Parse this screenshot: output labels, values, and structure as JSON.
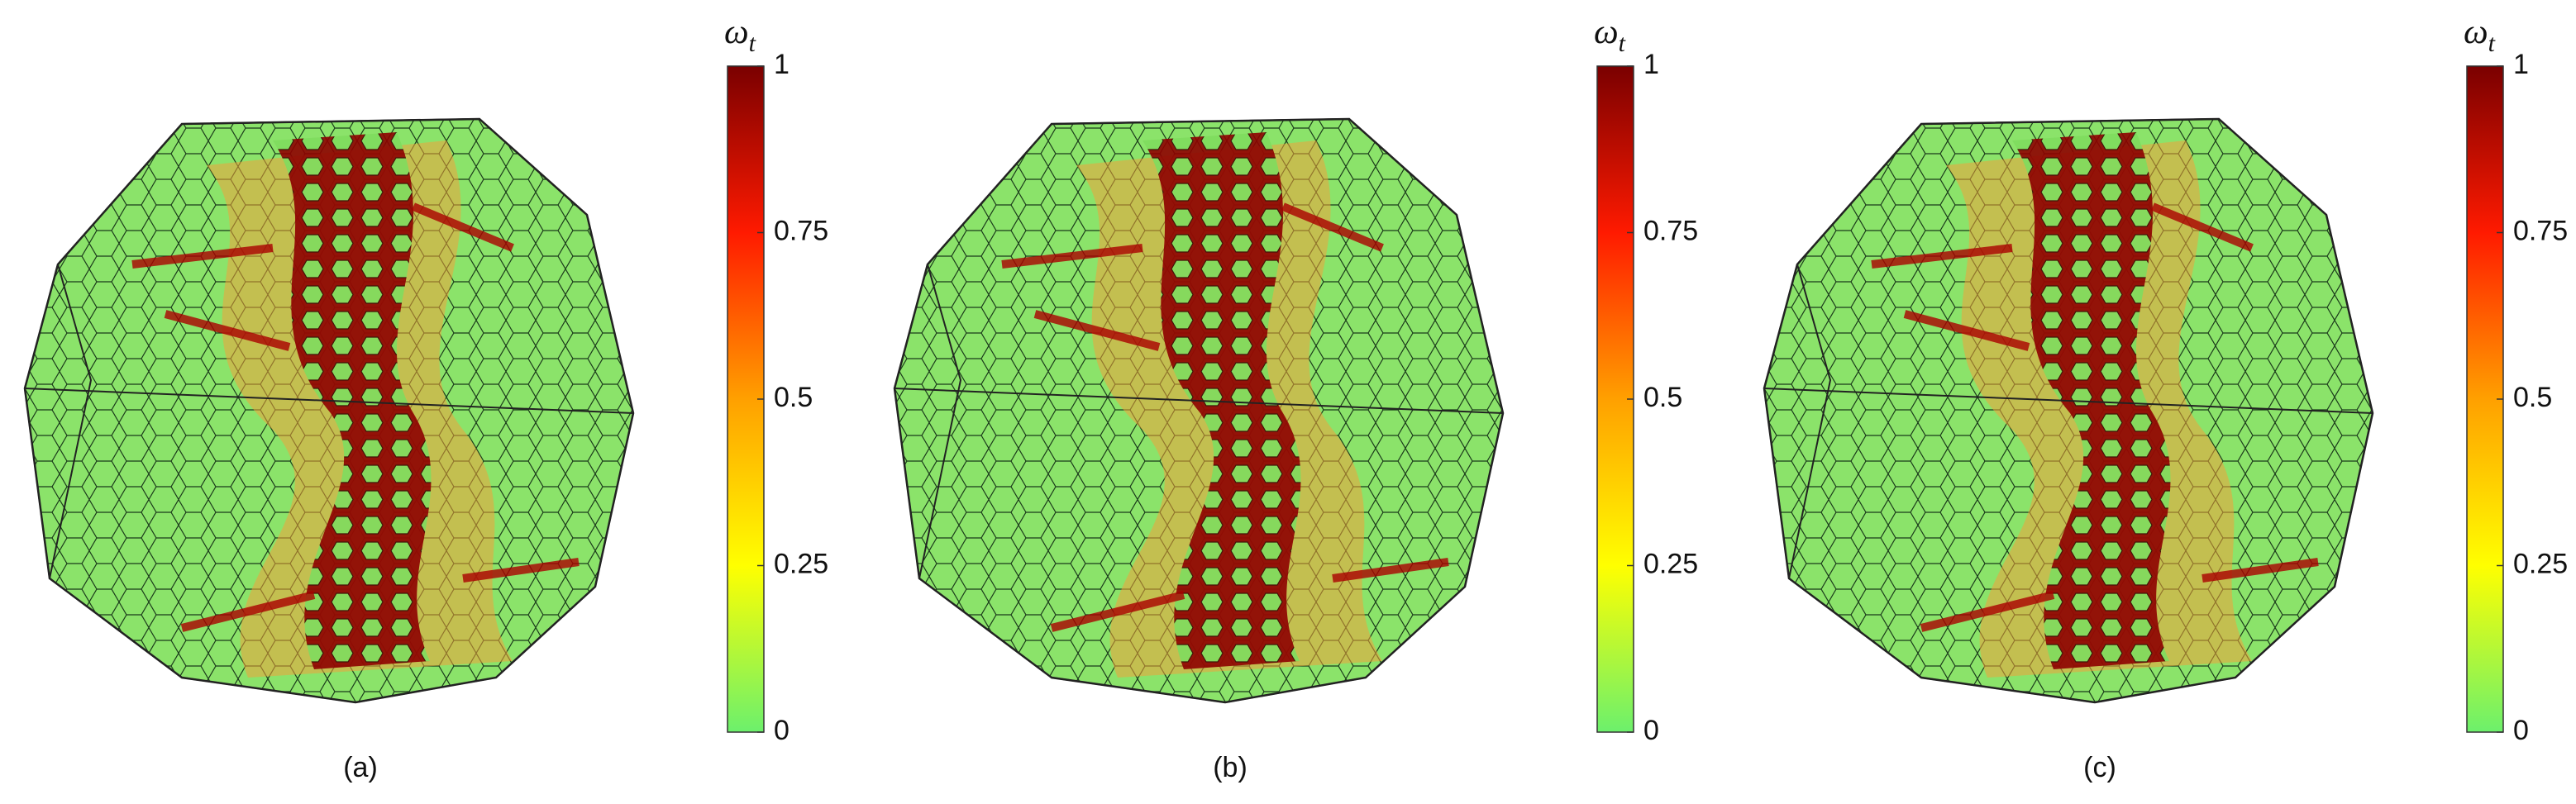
{
  "panels": [
    {
      "label": "(a)",
      "colorbar": {
        "symbol": "ω",
        "subscript": "t",
        "range": [
          0,
          1
        ],
        "ticks": [
          0,
          0.25,
          0.5,
          0.75,
          1
        ]
      }
    },
    {
      "label": "(b)",
      "colorbar": {
        "symbol": "ω",
        "subscript": "t",
        "range": [
          0,
          1
        ],
        "ticks": [
          0,
          0.25,
          0.5,
          0.75,
          1
        ]
      }
    },
    {
      "label": "(c)",
      "colorbar": {
        "symbol": "ω",
        "subscript": "t",
        "range": [
          0,
          1
        ],
        "ticks": [
          0,
          0.25,
          0.5,
          0.75,
          1
        ]
      }
    }
  ]
}
